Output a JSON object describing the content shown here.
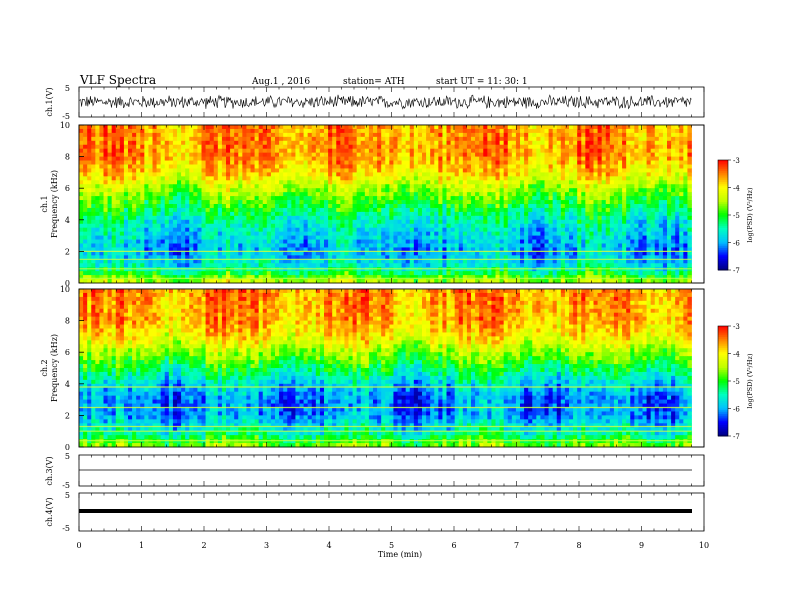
{
  "header": {
    "title": "VLF  Spectra",
    "date": "Aug.1  , 2016",
    "station": "station= ATH",
    "start": "start  UT  =    11: 30: 1"
  },
  "panels": {
    "ch1_wave": {
      "ylabel": "ch.1(V)",
      "ticks": [
        "5",
        "-5"
      ]
    },
    "ch1_spec": {
      "ylabel": "ch.1\nFrequency  (kHz)",
      "ticks": [
        "10",
        "8",
        "6",
        "4",
        "2",
        "0"
      ]
    },
    "ch2_spec": {
      "ylabel": "ch.2\nFrequency  (kHz)",
      "ticks": [
        "10",
        "8",
        "6",
        "4",
        "2",
        "0"
      ]
    },
    "ch3_wave": {
      "ylabel": "ch.3(V)",
      "ticks": [
        "5",
        "-5"
      ]
    },
    "ch4_wave": {
      "ylabel": "ch.4(V)",
      "ticks": [
        "5",
        "-5"
      ]
    }
  },
  "colorbar": {
    "label": "log(PSD) (V²/Hz)",
    "ticks": [
      "-3",
      "-4",
      "-5",
      "-6",
      "-7"
    ]
  },
  "xaxis": {
    "label": "Time  (min)",
    "ticks": [
      "0",
      "1",
      "2",
      "3",
      "4",
      "5",
      "6",
      "7",
      "8",
      "9",
      "10"
    ]
  },
  "chart_data": {
    "type": "heatmap",
    "title": "VLF  Spectra",
    "xlabel": "Time  (min)",
    "xlim": [
      0,
      10
    ],
    "data_end_min": 9.8,
    "waveform_ylim": [
      -5,
      5
    ],
    "frequency_ylim_khz": [
      0,
      10
    ],
    "colorbar_range_log_psd": [
      -7,
      -3
    ],
    "colormap": [
      "#000080",
      "#0000ff",
      "#00c0ff",
      "#00ffc0",
      "#00ff00",
      "#c0ff00",
      "#ffff00",
      "#ff8000",
      "#ff0000",
      "#ffffff"
    ],
    "spectrogram_profiles": {
      "ch1": {
        "freq_khz": [
          0,
          1,
          2,
          3,
          4,
          5,
          6,
          7,
          8,
          10
        ],
        "log_psd": [
          -4.4,
          -5.6,
          -6.0,
          -5.8,
          -5.5,
          -5.0,
          -4.5,
          -3.9,
          -3.6,
          -3.6
        ],
        "narrowband_lines_khz": [
          0.3,
          0.9,
          1.5,
          2.0
        ]
      },
      "ch2": {
        "freq_khz": [
          0,
          1,
          2,
          3,
          4,
          5,
          6,
          7,
          8,
          10
        ],
        "log_psd": [
          -4.6,
          -5.6,
          -6.1,
          -6.2,
          -5.8,
          -5.2,
          -4.6,
          -4.0,
          -3.7,
          -3.6
        ],
        "narrowband_lines_khz": [
          0.4,
          1.0,
          1.3,
          2.5,
          3.8
        ]
      }
    },
    "waveforms": {
      "ch1_amplitude_v": 2.5,
      "ch3_level_v": 0,
      "ch4_level_v": 0
    }
  }
}
